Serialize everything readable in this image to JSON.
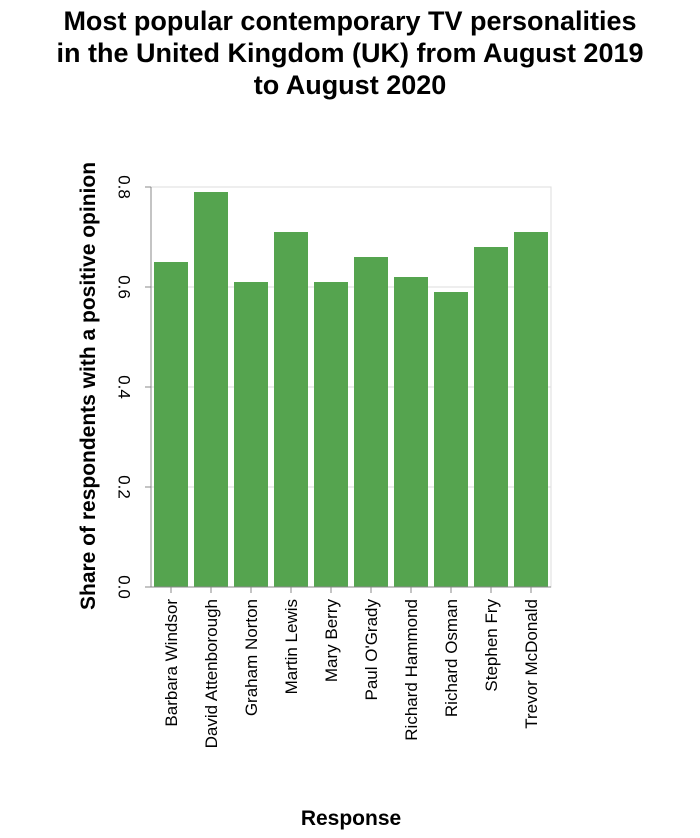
{
  "chart_data": {
    "type": "bar",
    "title": [
      "Most popular contemporary TV personalities",
      "in the United Kingdom (UK) from August 2019",
      "to August 2020"
    ],
    "xlabel": "Response",
    "ylabel": "Share of respondents with a positive opinion",
    "categories": [
      "Barbara Windsor",
      "David Attenborough",
      "Graham Norton",
      "Martin Lewis",
      "Mary Berry",
      "Paul O'Grady",
      "Richard Hammond",
      "Richard Osman",
      "Stephen Fry",
      "Trevor McDonald"
    ],
    "values": [
      0.65,
      0.79,
      0.61,
      0.71,
      0.61,
      0.66,
      0.62,
      0.59,
      0.68,
      0.71
    ],
    "ylim": [
      0,
      0.8
    ],
    "yticks": [
      "0.0",
      "0.2",
      "0.4",
      "0.6",
      "0.8"
    ],
    "grid": true,
    "bar_color": "#55a44f"
  }
}
